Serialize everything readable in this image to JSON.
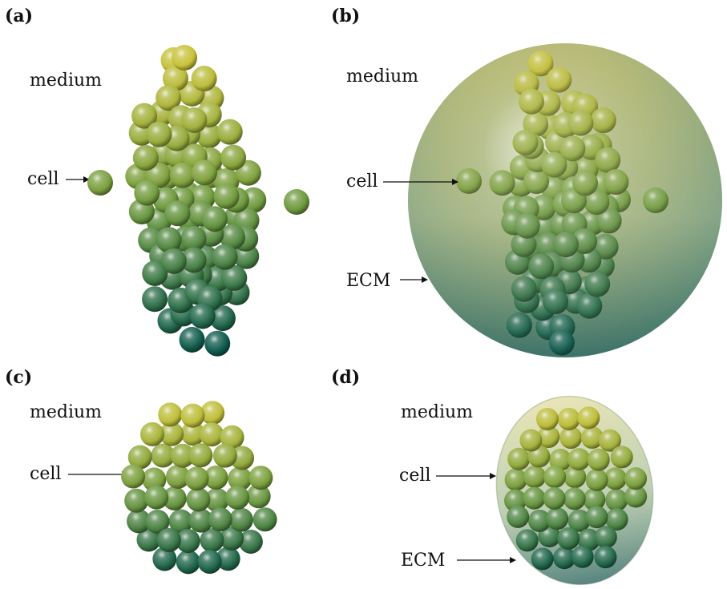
{
  "panels": [
    {
      "id": "a",
      "label": "(a)",
      "annotations": {
        "medium": "medium",
        "cell": "cell"
      }
    },
    {
      "id": "b",
      "label": "(b)",
      "annotations": {
        "medium": "medium",
        "cell": "cell",
        "ecm": "ECM"
      }
    },
    {
      "id": "c",
      "label": "(c)",
      "annotations": {
        "medium": "medium",
        "cell": "cell"
      }
    },
    {
      "id": "d",
      "label": "(d)",
      "annotations": {
        "medium": "medium",
        "cell": "cell",
        "ecm": "ECM"
      }
    }
  ],
  "colors": {
    "top_cell": "#c9c23a",
    "mid_cell": "#6f9a3e",
    "bottom_cell": "#0e5a4e",
    "ecm_top": "#b8b468",
    "ecm_bottom": "#2c6e66"
  }
}
